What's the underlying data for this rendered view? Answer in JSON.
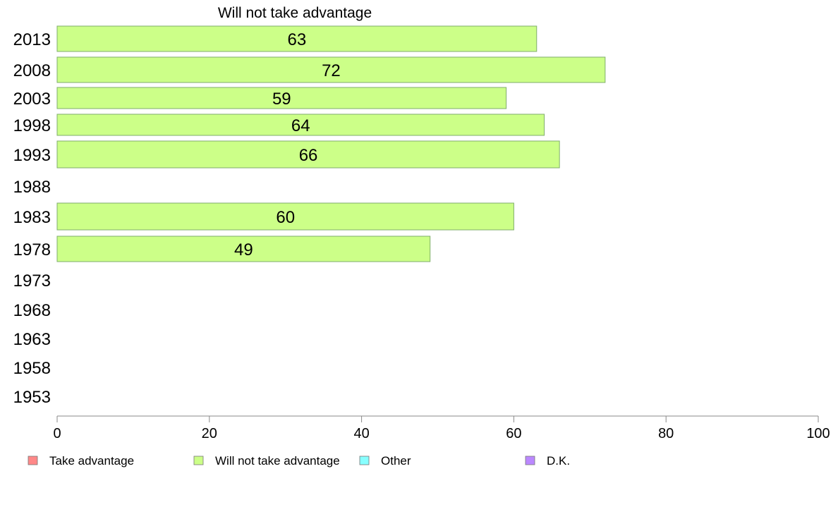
{
  "chart_data": {
    "type": "bar",
    "orientation": "horizontal",
    "title": "Will not take advantage",
    "categories": [
      "2013",
      "2008",
      "2003",
      "1998",
      "1993",
      "1988",
      "1983",
      "1978",
      "1973",
      "1968",
      "1963",
      "1958",
      "1953"
    ],
    "series": [
      {
        "name": "Will not take advantage",
        "color": "#ccff88",
        "values": [
          63,
          72,
          59,
          64,
          66,
          null,
          60,
          49,
          null,
          null,
          null,
          null,
          null
        ]
      }
    ],
    "xlim": [
      0,
      100
    ],
    "xticks": [
      0,
      20,
      40,
      60,
      80,
      100
    ],
    "grid": false,
    "legend": {
      "placement": "bottom",
      "entries": [
        {
          "label": "Take advantage",
          "color": "#ff8888"
        },
        {
          "label": "Will not take advantage",
          "color": "#ccff88"
        },
        {
          "label": "Other",
          "color": "#88ffff"
        },
        {
          "label": "D.K.",
          "color": "#bb88ff"
        }
      ]
    }
  }
}
